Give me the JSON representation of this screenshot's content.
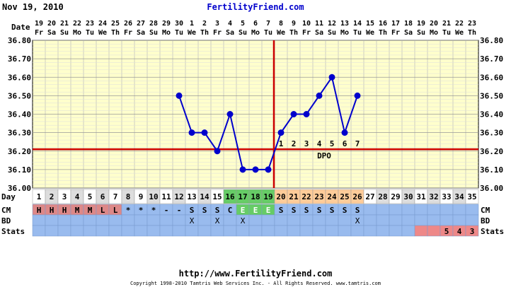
{
  "header": {
    "date_text": "Nov 19, 2010",
    "site_title": "FertilityFriend.com"
  },
  "footer": {
    "url": "http://www.FertilityFriend.com",
    "copyright": "Copyright 1998-2010 Tamtris Web Services Inc. - All Rights Reserved. www.tamtris.com"
  },
  "row_labels": {
    "date": "Date",
    "day": "Day",
    "cm": "CM",
    "bd": "BD",
    "stats": "Stats",
    "dpo": "DPO"
  },
  "colors": {
    "title": "#0000cc",
    "plot_bg": "#ffffcc",
    "grid": "#bbbbbb",
    "temp_line": "#0000cc",
    "coverline": "#cc0000",
    "ovulation_line": "#cc0000",
    "row_blue": "#99bbee",
    "day_gray": "#dddddd",
    "day_white": "#ffffff",
    "day_fertile": "#66cc66",
    "day_luteal": "#ffcc99",
    "cm_red": "#dd8888",
    "stats_red": "#ee8888"
  },
  "chart_data": {
    "type": "line",
    "dates": [
      "19",
      "20",
      "21",
      "22",
      "23",
      "24",
      "25",
      "26",
      "27",
      "28",
      "29",
      "30",
      "1",
      "2",
      "3",
      "4",
      "5",
      "6",
      "7",
      "8",
      "9",
      "10",
      "11",
      "12",
      "13",
      "14",
      "15",
      "16",
      "17",
      "18",
      "19",
      "20",
      "21",
      "22",
      "23"
    ],
    "weekdays": [
      "Fr",
      "Sa",
      "Su",
      "Mo",
      "Tu",
      "We",
      "Th",
      "Fr",
      "Sa",
      "Su",
      "Mo",
      "Tu",
      "We",
      "Th",
      "Fr",
      "Sa",
      "Su",
      "Mo",
      "Tu",
      "We",
      "Th",
      "Fr",
      "Sa",
      "Su",
      "Mo",
      "Tu",
      "We",
      "Th",
      "Fr",
      "Sa",
      "Su",
      "Mo",
      "Tu",
      "We",
      "Th"
    ],
    "cycle_days": [
      1,
      2,
      3,
      4,
      5,
      6,
      7,
      8,
      9,
      10,
      11,
      12,
      13,
      14,
      15,
      16,
      17,
      18,
      19,
      20,
      21,
      22,
      23,
      24,
      25,
      26,
      27,
      28,
      29,
      30,
      31,
      32,
      33,
      34,
      35
    ],
    "temperatures": [
      null,
      null,
      null,
      null,
      null,
      null,
      null,
      null,
      null,
      null,
      null,
      36.5,
      36.3,
      36.3,
      36.2,
      36.4,
      36.1,
      36.1,
      36.1,
      36.3,
      36.4,
      36.4,
      36.5,
      36.6,
      36.3,
      36.5,
      null,
      null,
      null,
      null,
      null,
      null,
      null,
      null,
      null
    ],
    "ylim": [
      36.0,
      36.8
    ],
    "y_ticks": [
      "36.00",
      "36.10",
      "36.20",
      "36.30",
      "36.40",
      "36.50",
      "36.60",
      "36.70",
      "36.80"
    ],
    "coverline": 36.21,
    "ovulation_day": 19,
    "dpo_labels": [
      "1",
      "2",
      "3",
      "4",
      "5",
      "6",
      "7"
    ],
    "cm_values": [
      "H",
      "H",
      "H",
      "M",
      "M",
      "L",
      "L",
      "*",
      "*",
      "*",
      "-",
      "-",
      "S",
      "S",
      "S",
      "C",
      "E",
      "E",
      "E",
      "S",
      "S",
      "S",
      "S",
      "S",
      "S",
      "S",
      "",
      "",
      "",
      "",
      "",
      "",
      "",
      "",
      ""
    ],
    "bd_values": [
      "",
      "",
      "",
      "",
      "",
      "",
      "",
      "",
      "",
      "",
      "",
      "",
      "X",
      "",
      "X",
      "",
      "X",
      "",
      "",
      "",
      "",
      "",
      "",
      "",
      "",
      "X",
      "",
      "",
      "",
      "",
      "",
      "",
      "",
      "",
      ""
    ],
    "stats_values": [
      "",
      "",
      "",
      "",
      "",
      "",
      "",
      "",
      "",
      "",
      "",
      "",
      "",
      "",
      "",
      "",
      "",
      "",
      "",
      "",
      "",
      "",
      "",
      "",
      "",
      "",
      "",
      "",
      "",
      "",
      "",
      "",
      "5",
      "4",
      "3"
    ],
    "stats_highlight_from": 31,
    "day_bg": [
      "w",
      "g",
      "w",
      "g",
      "w",
      "g",
      "w",
      "g",
      "w",
      "g",
      "w",
      "g",
      "w",
      "g",
      "w",
      "f",
      "f",
      "f",
      "f",
      "l",
      "l",
      "l",
      "l",
      "l",
      "l",
      "l",
      "w",
      "g",
      "w",
      "g",
      "w",
      "g",
      "w",
      "g",
      "w"
    ],
    "grid": true
  }
}
